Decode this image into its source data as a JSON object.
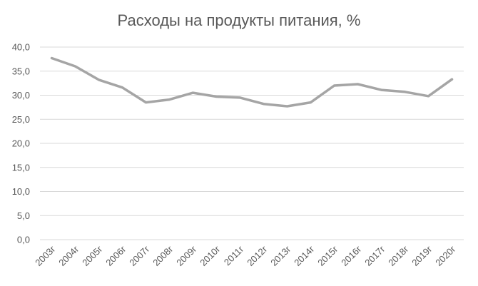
{
  "chart_data": {
    "type": "line",
    "title": "Расходы на продукты питания, %",
    "xlabel": "",
    "ylabel": "",
    "categories": [
      "2003г",
      "2004г",
      "2005г",
      "2006г",
      "2007г",
      "2008г",
      "2009г",
      "2010г",
      "2011г",
      "2012г",
      "2013г",
      "2014г",
      "2015г",
      "2016г",
      "2017г",
      "2018г",
      "2019г",
      "2020г"
    ],
    "series": [
      {
        "values": [
          37.7,
          36.0,
          33.2,
          31.6,
          28.5,
          29.1,
          30.5,
          29.7,
          29.5,
          28.2,
          27.7,
          28.5,
          32.0,
          32.3,
          31.1,
          30.7,
          29.8,
          33.3
        ],
        "color": "#a5a5a5"
      }
    ],
    "ylim": [
      0,
      40
    ],
    "yticks": [
      "0,0",
      "5,0",
      "10,0",
      "15,0",
      "20,0",
      "25,0",
      "30,0",
      "35,0",
      "40,0"
    ],
    "grid": true,
    "legend": "none"
  }
}
